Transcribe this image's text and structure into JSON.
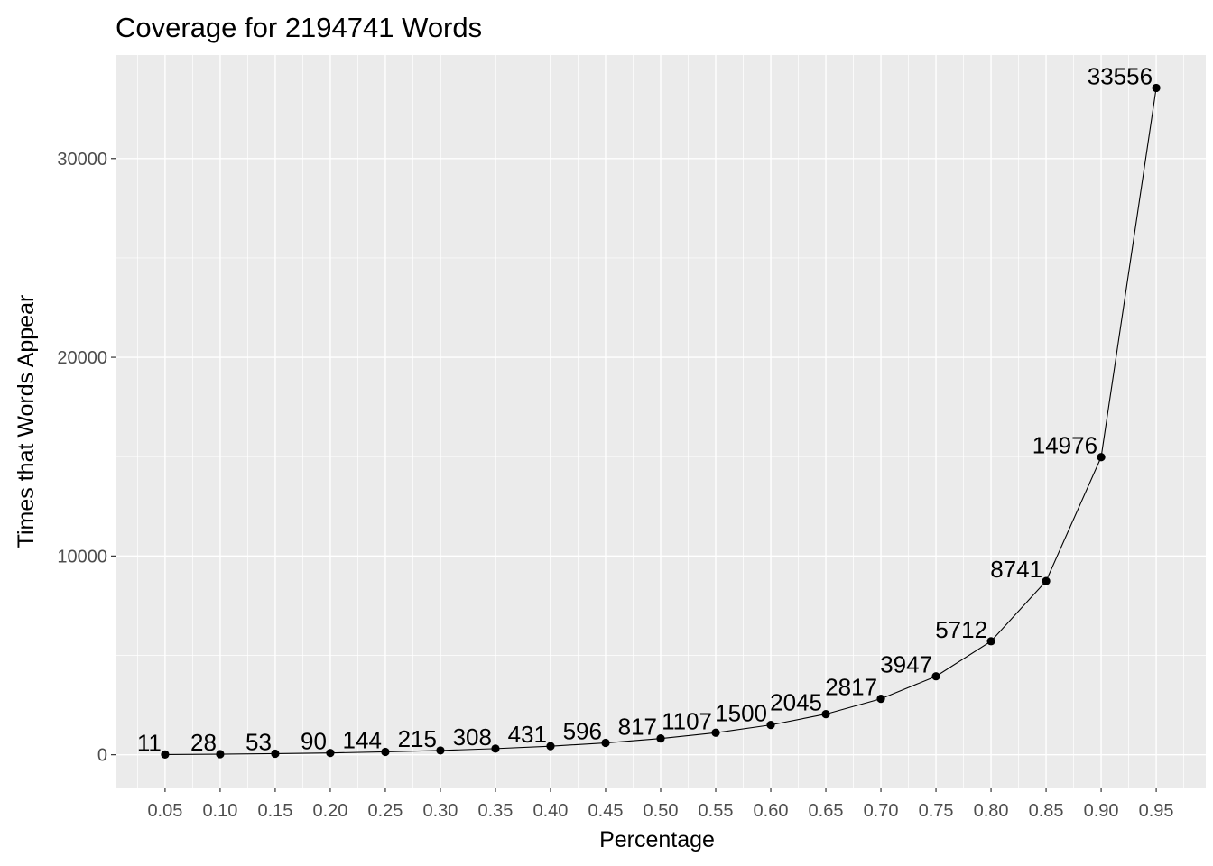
{
  "chart_data": {
    "type": "line",
    "title": "Coverage for  2194741 Words",
    "xlabel": "Percentage",
    "ylabel": "Times that Words Appear",
    "x": [
      "0.05",
      "0.10",
      "0.15",
      "0.20",
      "0.25",
      "0.30",
      "0.35",
      "0.40",
      "0.45",
      "0.50",
      "0.55",
      "0.60",
      "0.65",
      "0.70",
      "0.75",
      "0.80",
      "0.85",
      "0.90",
      "0.95"
    ],
    "values": [
      11,
      28,
      53,
      90,
      144,
      215,
      308,
      431,
      596,
      817,
      1107,
      1500,
      2045,
      2817,
      3947,
      5712,
      8741,
      14976,
      33556
    ],
    "data_labels": [
      "11",
      "28",
      "53",
      "90",
      "144",
      "215",
      "308",
      "431",
      "596",
      "817",
      "1107",
      "1500",
      "2045",
      "2817",
      "3947",
      "5712",
      "8741",
      "14976",
      "33556"
    ],
    "y_ticks": [
      0,
      10000,
      20000,
      30000
    ],
    "y_tick_labels": [
      "0",
      "10000",
      "20000",
      "30000"
    ],
    "ylim": [
      -1650,
      35210
    ],
    "xlim": [
      0.005,
      0.995
    ],
    "grid": true,
    "legend": "none",
    "colors": {
      "panel_background": "#ebebeb",
      "grid_major": "#ffffff",
      "line": "#000000",
      "point": "#000000"
    }
  }
}
